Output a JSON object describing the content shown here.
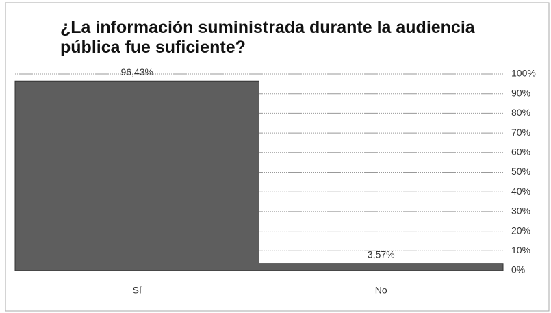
{
  "chart_data": {
    "type": "bar",
    "title": "¿La información suministrada durante la audiencia pública fue suficiente?",
    "categories": [
      "Sí",
      "No"
    ],
    "values": [
      96.43,
      3.57
    ],
    "value_labels": [
      "96,43%",
      "3,57%"
    ],
    "color": "#5e5e5e",
    "ylim": [
      0,
      100
    ],
    "yticks": [
      {
        "value": 0,
        "label": "0%"
      },
      {
        "value": 10,
        "label": "10%"
      },
      {
        "value": 20,
        "label": "20%"
      },
      {
        "value": 30,
        "label": "30%"
      },
      {
        "value": 40,
        "label": "40%"
      },
      {
        "value": 50,
        "label": "50%"
      },
      {
        "value": 60,
        "label": "60%"
      },
      {
        "value": 70,
        "label": "70%"
      },
      {
        "value": 80,
        "label": "80%"
      },
      {
        "value": 90,
        "label": "90%"
      },
      {
        "value": 100,
        "label": "100%"
      }
    ],
    "grid": true
  }
}
